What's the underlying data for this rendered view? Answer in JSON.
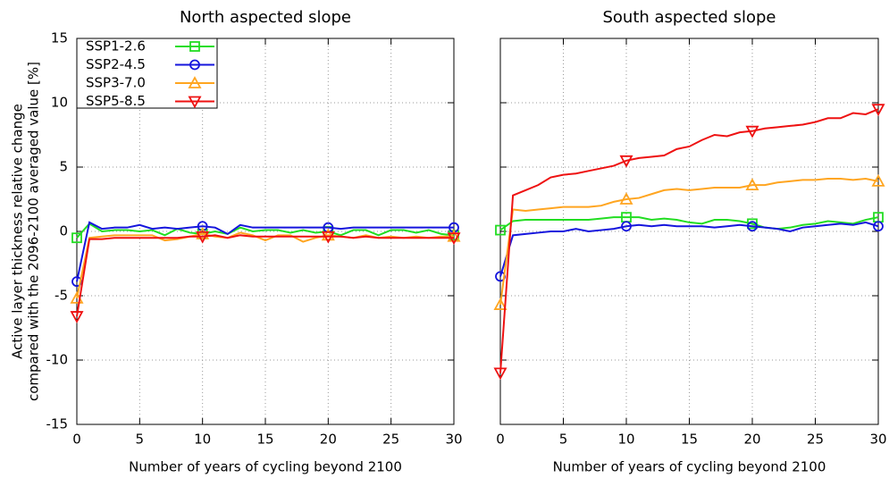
{
  "chart_data": [
    {
      "type": "line",
      "title": "North aspected slope",
      "xlabel": "Number of years of cycling beyond 2100",
      "ylabel": [
        "Active layer thickness relative change",
        "compared with the 2096-2100 averaged value   [%]"
      ],
      "x": [
        0,
        1,
        2,
        3,
        4,
        5,
        6,
        7,
        8,
        9,
        10,
        11,
        12,
        13,
        14,
        15,
        16,
        17,
        18,
        19,
        20,
        21,
        22,
        23,
        24,
        25,
        26,
        27,
        28,
        29,
        30
      ],
      "xlim": [
        0,
        30
      ],
      "xticks": [
        0,
        5,
        10,
        15,
        20,
        25,
        30
      ],
      "ylim": [
        -15,
        15
      ],
      "yticks": [
        -15,
        -10,
        -5,
        0,
        5,
        10,
        15
      ],
      "ytick_labels": true,
      "grid": true,
      "legend": "upper-left",
      "marker_interval": 10,
      "series": [
        {
          "name": "SSP1-2.6",
          "color": "#22dd22",
          "marker": "square",
          "values": [
            -0.5,
            0.6,
            0.0,
            0.1,
            0.1,
            0.0,
            0.1,
            -0.3,
            0.2,
            -0.1,
            -0.2,
            0.0,
            -0.2,
            0.3,
            0.0,
            0.1,
            0.1,
            -0.1,
            0.1,
            -0.1,
            0.0,
            -0.3,
            0.1,
            0.1,
            -0.3,
            0.1,
            0.1,
            -0.1,
            0.1,
            -0.2,
            -0.3
          ]
        },
        {
          "name": "SSP2-4.5",
          "color": "#1515dd",
          "marker": "circle",
          "values": [
            -3.9,
            0.7,
            0.2,
            0.3,
            0.3,
            0.5,
            0.2,
            0.3,
            0.2,
            0.3,
            0.4,
            0.3,
            -0.2,
            0.5,
            0.3,
            0.3,
            0.3,
            0.3,
            0.3,
            0.3,
            0.3,
            0.2,
            0.3,
            0.3,
            0.3,
            0.3,
            0.3,
            0.3,
            0.3,
            0.3,
            0.3
          ]
        },
        {
          "name": "SSP3-7.0",
          "color": "#ffa520",
          "marker": "triangle",
          "values": [
            -5.2,
            -0.5,
            -0.4,
            -0.3,
            -0.3,
            -0.3,
            -0.3,
            -0.7,
            -0.6,
            -0.4,
            -0.2,
            -0.4,
            -0.5,
            -0.1,
            -0.3,
            -0.7,
            -0.3,
            -0.3,
            -0.8,
            -0.5,
            -0.3,
            -0.4,
            -0.5,
            -0.3,
            -0.5,
            -0.4,
            -0.5,
            -0.4,
            -0.5,
            -0.4,
            -0.4
          ]
        },
        {
          "name": "SSP5-8.5",
          "color": "#ee1111",
          "marker": "triangle-down",
          "values": [
            -6.6,
            -0.6,
            -0.6,
            -0.5,
            -0.5,
            -0.5,
            -0.5,
            -0.5,
            -0.5,
            -0.4,
            -0.4,
            -0.3,
            -0.5,
            -0.3,
            -0.4,
            -0.4,
            -0.4,
            -0.4,
            -0.4,
            -0.4,
            -0.4,
            -0.4,
            -0.5,
            -0.4,
            -0.5,
            -0.5,
            -0.5,
            -0.5,
            -0.5,
            -0.5,
            -0.5
          ]
        }
      ]
    },
    {
      "type": "line",
      "title": "South aspected slope",
      "xlabel": "Number of years of cycling beyond 2100",
      "x": [
        0,
        1,
        2,
        3,
        4,
        5,
        6,
        7,
        8,
        9,
        10,
        11,
        12,
        13,
        14,
        15,
        16,
        17,
        18,
        19,
        20,
        21,
        22,
        23,
        24,
        25,
        26,
        27,
        28,
        29,
        30
      ],
      "xlim": [
        0,
        30
      ],
      "xticks": [
        0,
        5,
        10,
        15,
        20,
        25,
        30
      ],
      "ylim": [
        -15,
        15
      ],
      "yticks": [
        -15,
        -10,
        -5,
        0,
        5,
        10,
        15
      ],
      "ytick_labels": false,
      "grid": true,
      "marker_interval": 10,
      "series": [
        {
          "color": "#22dd22",
          "marker": "square",
          "values": [
            0.1,
            0.8,
            0.9,
            0.9,
            0.9,
            0.9,
            0.9,
            0.9,
            1.0,
            1.1,
            1.1,
            1.1,
            0.9,
            1.0,
            0.9,
            0.7,
            0.6,
            0.9,
            0.9,
            0.8,
            0.6,
            0.3,
            0.2,
            0.3,
            0.5,
            0.6,
            0.8,
            0.7,
            0.6,
            0.9,
            1.1
          ]
        },
        {
          "color": "#1515dd",
          "marker": "circle",
          "values": [
            -3.5,
            -0.3,
            -0.2,
            -0.1,
            0.0,
            0.0,
            0.2,
            0.0,
            0.1,
            0.2,
            0.4,
            0.5,
            0.4,
            0.5,
            0.4,
            0.4,
            0.4,
            0.3,
            0.4,
            0.5,
            0.4,
            0.3,
            0.2,
            0.0,
            0.3,
            0.4,
            0.5,
            0.6,
            0.5,
            0.7,
            0.4
          ]
        },
        {
          "color": "#ffa520",
          "marker": "triangle",
          "values": [
            -5.7,
            1.7,
            1.6,
            1.7,
            1.8,
            1.9,
            1.9,
            1.9,
            2.0,
            2.3,
            2.5,
            2.6,
            2.9,
            3.2,
            3.3,
            3.2,
            3.3,
            3.4,
            3.4,
            3.4,
            3.6,
            3.6,
            3.8,
            3.9,
            4.0,
            4.0,
            4.1,
            4.1,
            4.0,
            4.1,
            3.9
          ]
        },
        {
          "color": "#ee1111",
          "marker": "triangle-down",
          "values": [
            -11.0,
            2.8,
            3.2,
            3.6,
            4.2,
            4.4,
            4.5,
            4.7,
            4.9,
            5.1,
            5.5,
            5.7,
            5.8,
            5.9,
            6.4,
            6.6,
            7.1,
            7.5,
            7.4,
            7.7,
            7.8,
            8.0,
            8.1,
            8.2,
            8.3,
            8.5,
            8.8,
            8.8,
            9.2,
            9.1,
            9.5
          ]
        }
      ]
    }
  ]
}
